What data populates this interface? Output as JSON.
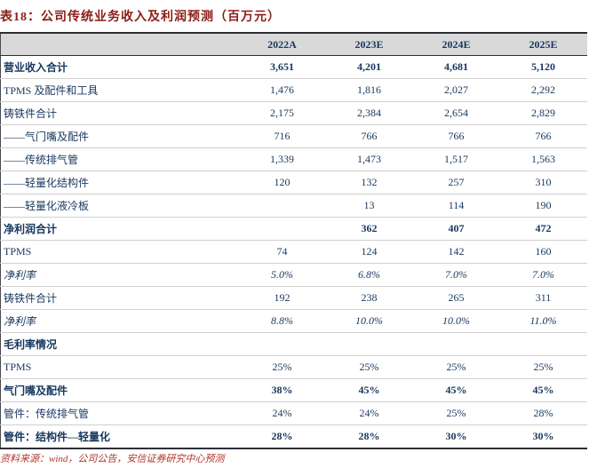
{
  "title": "表18：公司传统业务收入及利润预测（百万元）",
  "source": "资料来源：wind，公司公告，安信证券研究中心预测",
  "colors": {
    "title_red": "#8c1d18",
    "text_navy": "#17375e",
    "header_gray": "#d9d9d9",
    "source_red": "#b0352c",
    "rule_dark": "#2e2e38"
  },
  "columns": [
    "2022A",
    "2023E",
    "2024E",
    "2025E"
  ],
  "rows": [
    {
      "label": "营业收入合计",
      "values": [
        "3,651",
        "4,201",
        "4,681",
        "5,120"
      ],
      "bold": true,
      "italic": false
    },
    {
      "label": "TPMS 及配件和工具",
      "values": [
        "1,476",
        "1,816",
        "2,027",
        "2,292"
      ],
      "bold": false,
      "italic": false
    },
    {
      "label": "铸铁件合计",
      "values": [
        "2,175",
        "2,384",
        "2,654",
        "2,829"
      ],
      "bold": false,
      "italic": false
    },
    {
      "label": "——气门嘴及配件",
      "values": [
        "716",
        "766",
        "766",
        "766"
      ],
      "bold": false,
      "italic": false
    },
    {
      "label": "——传统排气管",
      "values": [
        "1,339",
        "1,473",
        "1,517",
        "1,563"
      ],
      "bold": false,
      "italic": false
    },
    {
      "label": "——轻量化结构件",
      "values": [
        "120",
        "132",
        "257",
        "310"
      ],
      "bold": false,
      "italic": false
    },
    {
      "label": "——轻量化液冷板",
      "values": [
        "",
        "13",
        "114",
        "190"
      ],
      "bold": false,
      "italic": false
    },
    {
      "label": "净利润合计",
      "values": [
        "",
        "362",
        "407",
        "472"
      ],
      "bold": true,
      "italic": false
    },
    {
      "label": "TPMS",
      "values": [
        "74",
        "124",
        "142",
        "160"
      ],
      "bold": false,
      "italic": false
    },
    {
      "label": "净利率",
      "values": [
        "5.0%",
        "6.8%",
        "7.0%",
        "7.0%"
      ],
      "bold": false,
      "italic": true
    },
    {
      "label": "铸铁件合计",
      "values": [
        "192",
        "238",
        "265",
        "311"
      ],
      "bold": false,
      "italic": false
    },
    {
      "label": "净利率",
      "values": [
        "8.8%",
        "10.0%",
        "10.0%",
        "11.0%"
      ],
      "bold": false,
      "italic": true
    },
    {
      "label": "毛利率情况",
      "values": [
        "",
        "",
        "",
        ""
      ],
      "bold": true,
      "italic": false
    },
    {
      "label": "TPMS",
      "values": [
        "25%",
        "25%",
        "25%",
        "25%"
      ],
      "bold": false,
      "italic": false
    },
    {
      "label": "气门嘴及配件",
      "values": [
        "38%",
        "45%",
        "45%",
        "45%"
      ],
      "bold": true,
      "italic": false
    },
    {
      "label": "管件：传统排气管",
      "values": [
        "24%",
        "24%",
        "25%",
        "28%"
      ],
      "bold": false,
      "italic": false
    },
    {
      "label": "管件：结构件—轻量化",
      "values": [
        "28%",
        "28%",
        "30%",
        "30%"
      ],
      "bold": true,
      "italic": false
    }
  ]
}
